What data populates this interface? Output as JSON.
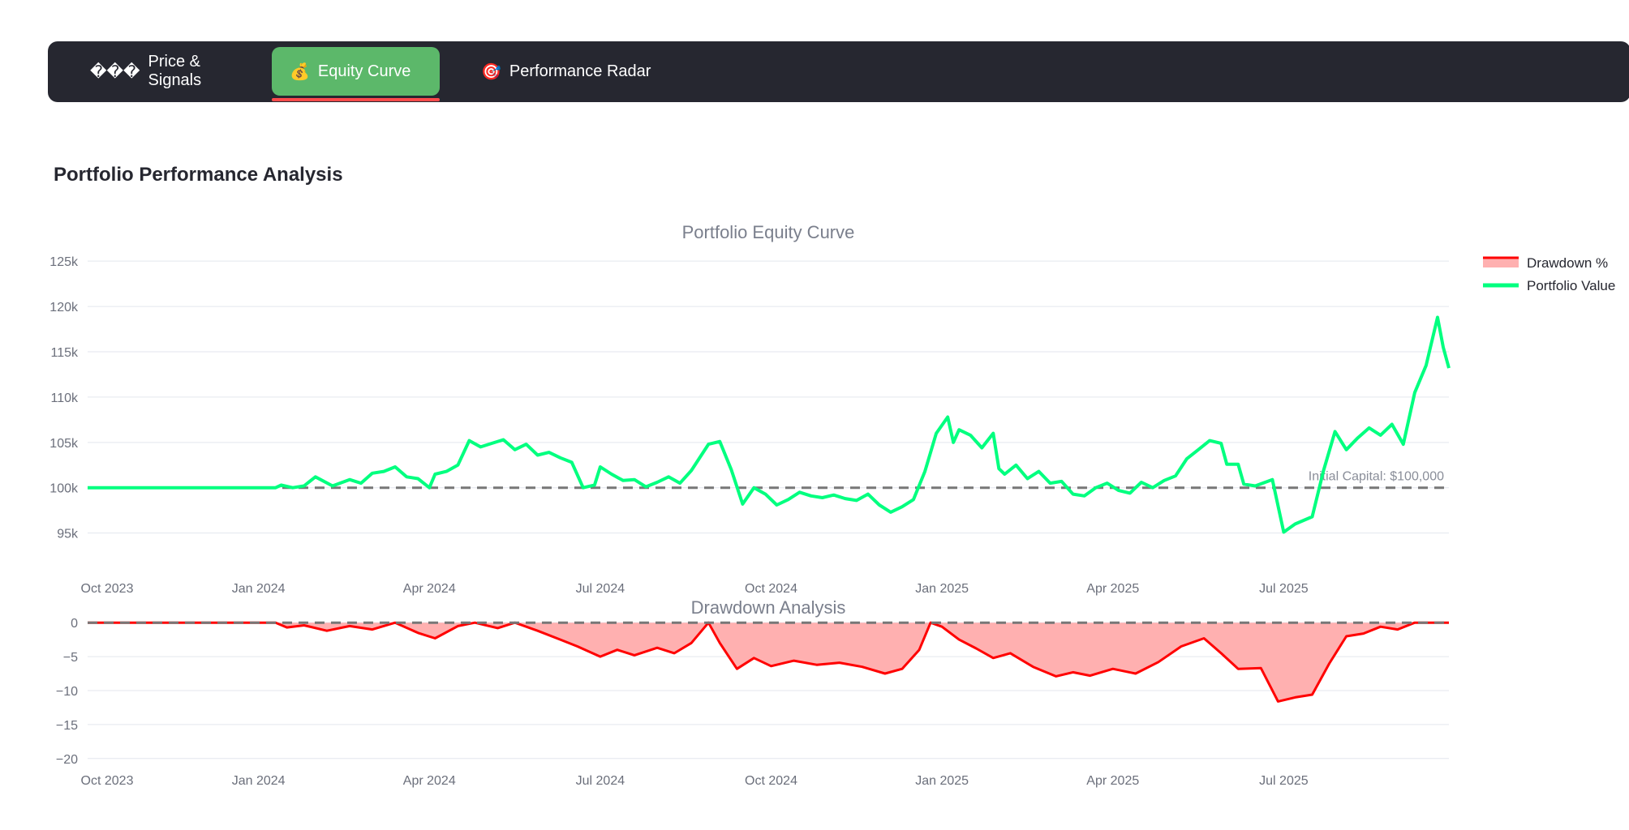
{
  "tabs": [
    {
      "icon": "���",
      "label": "Price & Signals",
      "active": false
    },
    {
      "icon": "💰",
      "label": "Equity Curve",
      "active": true
    },
    {
      "icon": "🎯",
      "label": "Performance Radar",
      "active": false
    }
  ],
  "section": {
    "title": "Portfolio Performance Analysis"
  },
  "colors": {
    "equity": "#00ff7f",
    "drawdown_line": "#ff0000",
    "drawdown_fill": "#ffb0b0",
    "dashed": "#777777",
    "tabbar": "#262730",
    "tab_active": "#5cb86a"
  },
  "chart_data": [
    {
      "type": "line",
      "title": "Portfolio Equity Curve",
      "xlabel": "",
      "ylabel": "",
      "x_ticks": [
        "Oct 2023",
        "Jan 2024",
        "Apr 2024",
        "Jul 2024",
        "Oct 2024",
        "Jan 2025",
        "Apr 2025",
        "Jul 2025"
      ],
      "ylim": [
        93000,
        126000
      ],
      "y_ticks": [
        {
          "value": 95000,
          "label": "95k"
        },
        {
          "value": 100000,
          "label": "100k"
        },
        {
          "value": 105000,
          "label": "105k"
        },
        {
          "value": 110000,
          "label": "110k"
        },
        {
          "value": 115000,
          "label": "115k"
        },
        {
          "value": 120000,
          "label": "120k"
        },
        {
          "value": 125000,
          "label": "125k"
        }
      ],
      "reference_line": {
        "value": 100000,
        "label": "Initial Capital: $100,000"
      },
      "x_unit": "months since Sep 30 2023",
      "x_range": [
        0,
        23.9
      ],
      "series": [
        {
          "name": "Portfolio Value",
          "values": [
            [
              0,
              100000
            ],
            [
              2,
              100000
            ],
            [
              3.3,
              100000
            ],
            [
              3.4,
              100300
            ],
            [
              3.6,
              100000
            ],
            [
              3.8,
              100200
            ],
            [
              4.0,
              101200
            ],
            [
              4.3,
              100200
            ],
            [
              4.6,
              100900
            ],
            [
              4.8,
              100500
            ],
            [
              5.0,
              101600
            ],
            [
              5.2,
              101800
            ],
            [
              5.4,
              102300
            ],
            [
              5.6,
              101200
            ],
            [
              5.8,
              101000
            ],
            [
              6.0,
              100000
            ],
            [
              6.1,
              101500
            ],
            [
              6.3,
              101800
            ],
            [
              6.5,
              102500
            ],
            [
              6.7,
              105200
            ],
            [
              6.9,
              104500
            ],
            [
              7.1,
              104900
            ],
            [
              7.3,
              105300
            ],
            [
              7.5,
              104200
            ],
            [
              7.7,
              104800
            ],
            [
              7.9,
              103600
            ],
            [
              8.1,
              103900
            ],
            [
              8.3,
              103300
            ],
            [
              8.5,
              102800
            ],
            [
              8.7,
              100000
            ],
            [
              8.9,
              100300
            ],
            [
              9.0,
              102300
            ],
            [
              9.2,
              101500
            ],
            [
              9.4,
              100800
            ],
            [
              9.6,
              100900
            ],
            [
              9.8,
              100100
            ],
            [
              10.0,
              100600
            ],
            [
              10.2,
              101200
            ],
            [
              10.4,
              100500
            ],
            [
              10.6,
              101900
            ],
            [
              10.9,
              104800
            ],
            [
              11.1,
              105100
            ],
            [
              11.3,
              102000
            ],
            [
              11.5,
              98200
            ],
            [
              11.7,
              100000
            ],
            [
              11.9,
              99300
            ],
            [
              12.1,
              98100
            ],
            [
              12.3,
              98700
            ],
            [
              12.5,
              99500
            ],
            [
              12.7,
              99100
            ],
            [
              12.9,
              98900
            ],
            [
              13.1,
              99200
            ],
            [
              13.3,
              98800
            ],
            [
              13.5,
              98600
            ],
            [
              13.7,
              99300
            ],
            [
              13.9,
              98100
            ],
            [
              14.1,
              97300
            ],
            [
              14.3,
              97900
            ],
            [
              14.5,
              98700
            ],
            [
              14.7,
              101800
            ],
            [
              14.9,
              106000
            ],
            [
              15.1,
              107800
            ],
            [
              15.2,
              105000
            ],
            [
              15.3,
              106400
            ],
            [
              15.5,
              105800
            ],
            [
              15.7,
              104400
            ],
            [
              15.9,
              106000
            ],
            [
              16.0,
              102100
            ],
            [
              16.1,
              101500
            ],
            [
              16.3,
              102500
            ],
            [
              16.5,
              101000
            ],
            [
              16.7,
              101800
            ],
            [
              16.9,
              100500
            ],
            [
              17.1,
              100700
            ],
            [
              17.3,
              99300
            ],
            [
              17.5,
              99100
            ],
            [
              17.7,
              100000
            ],
            [
              17.9,
              100500
            ],
            [
              18.1,
              99700
            ],
            [
              18.3,
              99400
            ],
            [
              18.5,
              100600
            ],
            [
              18.7,
              100000
            ],
            [
              18.9,
              100800
            ],
            [
              19.1,
              101300
            ],
            [
              19.3,
              103200
            ],
            [
              19.5,
              104200
            ],
            [
              19.7,
              105200
            ],
            [
              19.9,
              104900
            ],
            [
              20.0,
              102600
            ],
            [
              20.2,
              102600
            ],
            [
              20.3,
              100400
            ],
            [
              20.5,
              100200
            ],
            [
              20.8,
              100900
            ],
            [
              21.0,
              95100
            ],
            [
              21.2,
              96000
            ],
            [
              21.5,
              96800
            ],
            [
              21.7,
              101900
            ],
            [
              21.9,
              106200
            ],
            [
              22.1,
              104200
            ],
            [
              22.3,
              105500
            ],
            [
              22.5,
              106600
            ],
            [
              22.7,
              105800
            ],
            [
              22.9,
              107000
            ],
            [
              23.1,
              104800
            ],
            [
              23.3,
              110500
            ],
            [
              23.5,
              113500
            ],
            [
              23.7,
              118800
            ],
            [
              23.8,
              115500
            ],
            [
              23.9,
              113200
            ]
          ]
        }
      ]
    },
    {
      "type": "area",
      "title": "Drawdown Analysis",
      "xlabel": "",
      "ylabel": "",
      "x_ticks": [
        "Oct 2023",
        "Jan 2024",
        "Apr 2024",
        "Jul 2024",
        "Oct 2024",
        "Jan 2025",
        "Apr 2025",
        "Jul 2025"
      ],
      "ylim": [
        -20.5,
        0.5
      ],
      "y_ticks": [
        {
          "value": 0,
          "label": "0"
        },
        {
          "value": -5,
          "label": "−5"
        },
        {
          "value": -10,
          "label": "−10"
        },
        {
          "value": -15,
          "label": "−15"
        },
        {
          "value": -20,
          "label": "−20"
        }
      ],
      "reference_line": {
        "value": 0,
        "label": ""
      },
      "series": [
        {
          "name": "Drawdown %",
          "values": [
            [
              0,
              0
            ],
            [
              3.3,
              0
            ],
            [
              3.5,
              -0.7
            ],
            [
              3.8,
              -0.4
            ],
            [
              4.2,
              -1.2
            ],
            [
              4.6,
              -0.5
            ],
            [
              5.0,
              -1.0
            ],
            [
              5.4,
              0
            ],
            [
              5.8,
              -1.5
            ],
            [
              6.1,
              -2.3
            ],
            [
              6.5,
              -0.5
            ],
            [
              6.8,
              0
            ],
            [
              7.2,
              -0.8
            ],
            [
              7.5,
              0
            ],
            [
              7.9,
              -1.2
            ],
            [
              8.3,
              -2.5
            ],
            [
              8.6,
              -3.5
            ],
            [
              9.0,
              -5.0
            ],
            [
              9.3,
              -4.0
            ],
            [
              9.6,
              -4.8
            ],
            [
              10.0,
              -3.7
            ],
            [
              10.3,
              -4.5
            ],
            [
              10.6,
              -3.0
            ],
            [
              10.9,
              0
            ],
            [
              11.1,
              -3.0
            ],
            [
              11.4,
              -6.8
            ],
            [
              11.7,
              -5.2
            ],
            [
              12.0,
              -6.4
            ],
            [
              12.4,
              -5.6
            ],
            [
              12.8,
              -6.2
            ],
            [
              13.2,
              -5.9
            ],
            [
              13.6,
              -6.5
            ],
            [
              14.0,
              -7.5
            ],
            [
              14.3,
              -6.8
            ],
            [
              14.6,
              -4.0
            ],
            [
              14.8,
              0
            ],
            [
              15.0,
              -0.6
            ],
            [
              15.3,
              -2.5
            ],
            [
              15.6,
              -3.8
            ],
            [
              15.9,
              -5.2
            ],
            [
              16.2,
              -4.5
            ],
            [
              16.6,
              -6.5
            ],
            [
              17.0,
              -7.9
            ],
            [
              17.3,
              -7.3
            ],
            [
              17.6,
              -7.8
            ],
            [
              18.0,
              -6.8
            ],
            [
              18.4,
              -7.5
            ],
            [
              18.8,
              -5.8
            ],
            [
              19.2,
              -3.5
            ],
            [
              19.6,
              -2.3
            ],
            [
              19.9,
              -4.5
            ],
            [
              20.2,
              -6.8
            ],
            [
              20.6,
              -6.7
            ],
            [
              20.9,
              -11.6
            ],
            [
              21.2,
              -11.0
            ],
            [
              21.5,
              -10.6
            ],
            [
              21.8,
              -6.0
            ],
            [
              22.1,
              -2.0
            ],
            [
              22.4,
              -1.6
            ],
            [
              22.7,
              -0.6
            ],
            [
              23.0,
              -1.0
            ],
            [
              23.3,
              0
            ],
            [
              23.6,
              0
            ],
            [
              23.9,
              0
            ]
          ]
        }
      ],
      "legend": {
        "placement": "top-right",
        "entries": [
          "Drawdown %",
          "Portfolio Value"
        ]
      }
    }
  ]
}
